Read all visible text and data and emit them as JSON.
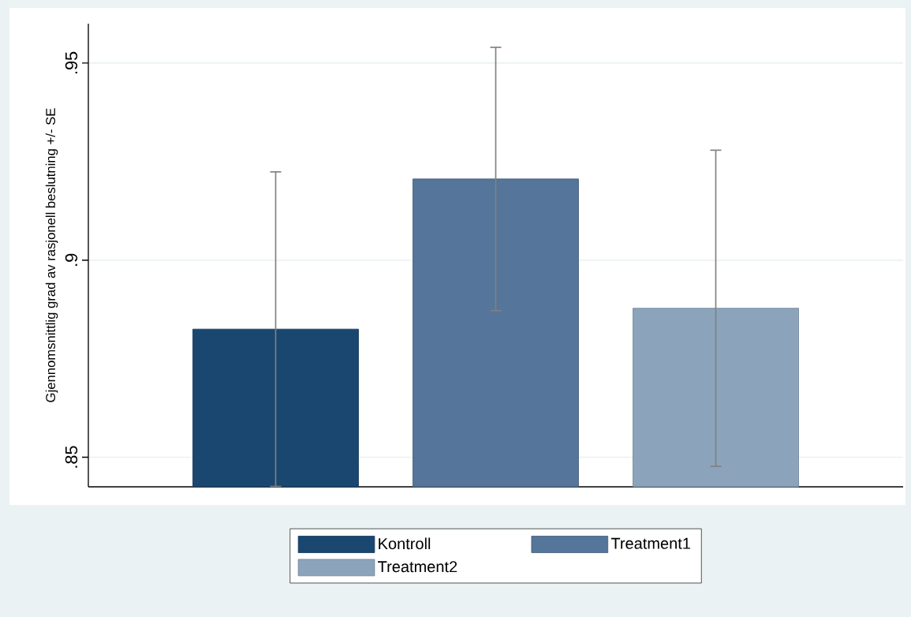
{
  "chart_data": {
    "type": "bar",
    "categories": [
      null
    ],
    "ylabel": "Gjennomsnittlig grad av rasjonell beslutning +/- SE",
    "ylim": [
      0.8425,
      0.96
    ],
    "yticks": [
      {
        "value": 0.85,
        "label": ".85"
      },
      {
        "value": 0.9,
        "label": ".9"
      },
      {
        "value": 0.95,
        "label": ".95"
      }
    ],
    "grid": "y",
    "legend": "bottom",
    "series": [
      {
        "name": "Kontroll",
        "color": "#1a476f",
        "values": [
          0.8825
        ],
        "errors": [
          0.0399
        ]
      },
      {
        "name": "Treatment1",
        "color": "#55759a",
        "values": [
          0.9206
        ],
        "errors": [
          0.0334
        ]
      },
      {
        "name": "Treatment2",
        "color": "#8ca4bb",
        "values": [
          0.8878
        ],
        "errors": [
          0.0401
        ]
      }
    ]
  }
}
